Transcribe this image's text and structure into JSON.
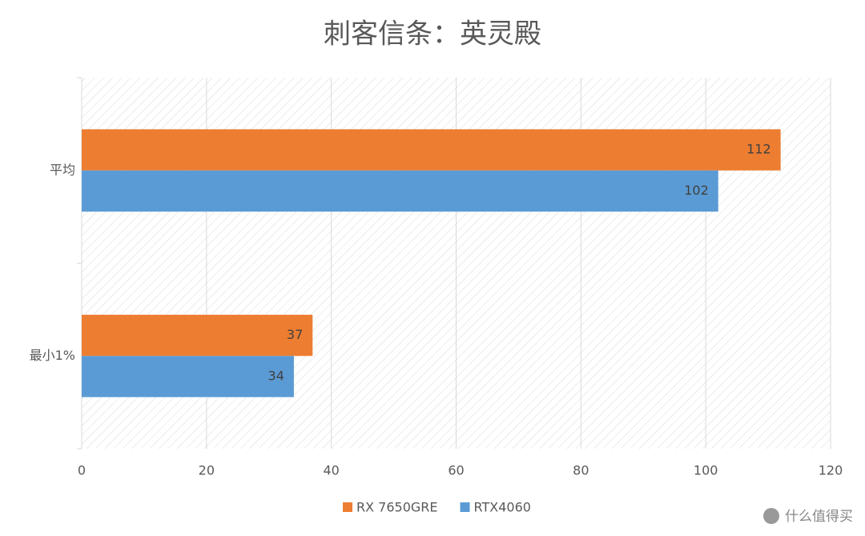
{
  "chart_data": {
    "type": "hbar",
    "title": "刺客信条：英灵殿",
    "categories": [
      "平均",
      "最小1%"
    ],
    "series": [
      {
        "name": "RX 7650GRE",
        "color": "#ed7d31",
        "values": [
          112,
          37
        ]
      },
      {
        "name": "RTX4060",
        "color": "#5b9bd5",
        "values": [
          102,
          34
        ]
      }
    ],
    "xlim": [
      0,
      120
    ],
    "xticks": [
      0,
      20,
      40,
      60,
      80,
      100,
      120
    ],
    "grid": true,
    "legend": "bottom",
    "watermark": "什么值得买"
  }
}
